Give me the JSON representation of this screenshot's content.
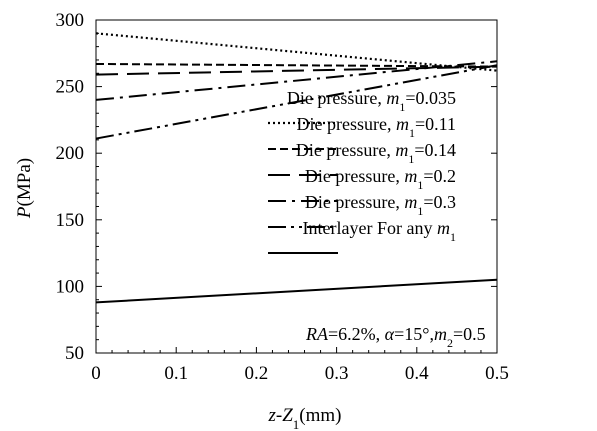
{
  "chart_data": {
    "type": "line",
    "xlabel": {
      "italic": "z-Z",
      "sub": "1",
      "rest": "(mm)"
    },
    "ylabel": {
      "italic": "P",
      "rest": "(MPa)"
    },
    "xlim": [
      0,
      0.5
    ],
    "ylim": [
      50,
      300
    ],
    "xticks": [
      {
        "v": 0,
        "label": "0"
      },
      {
        "v": 0.1,
        "label": "0.1"
      },
      {
        "v": 0.2,
        "label": "0.2"
      },
      {
        "v": 0.3,
        "label": "0.3"
      },
      {
        "v": 0.4,
        "label": "0.4"
      },
      {
        "v": 0.5,
        "label": "0.5"
      }
    ],
    "yticks": [
      {
        "v": 50,
        "label": "50"
      },
      {
        "v": 100,
        "label": "100"
      },
      {
        "v": 150,
        "label": "150"
      },
      {
        "v": 200,
        "label": "200"
      },
      {
        "v": 250,
        "label": "250"
      },
      {
        "v": 300,
        "label": "300"
      }
    ],
    "grid": false,
    "legend_position": "right",
    "series": [
      {
        "name_prefix": "Die pressure, ",
        "name_var": "m",
        "name_sub": "1",
        "name_suffix": "=0.035",
        "dash": "2,3",
        "x": [
          0,
          0.5
        ],
        "y": [
          290,
          262
        ]
      },
      {
        "name_prefix": "Die pressure, ",
        "name_var": "m",
        "name_sub": "1",
        "name_suffix": "=0.11",
        "dash": "8,4",
        "x": [
          0,
          0.5
        ],
        "y": [
          267,
          265
        ]
      },
      {
        "name_prefix": "Die pressure, ",
        "name_var": "m",
        "name_sub": "1",
        "name_suffix": "=0.14",
        "dash": "22,9",
        "x": [
          0,
          0.5
        ],
        "y": [
          259,
          265
        ]
      },
      {
        "name_prefix": "Die pressure, ",
        "name_var": "m",
        "name_sub": "1",
        "name_suffix": "=0.2",
        "dash": "18,6,3,6",
        "x": [
          0,
          0.5
        ],
        "y": [
          240,
          269
        ]
      },
      {
        "name_prefix": "Die pressure, ",
        "name_var": "m",
        "name_sub": "1",
        "name_suffix": "=0.3",
        "dash": "18,5,3,5,3,5",
        "x": [
          0,
          0.5
        ],
        "y": [
          211,
          266
        ]
      },
      {
        "name_prefix": "Interlayer For any ",
        "name_var": "m",
        "name_sub": "1",
        "name_suffix": "",
        "dash": "",
        "x": [
          0,
          0.5
        ],
        "y": [
          88,
          105
        ]
      }
    ],
    "annotation": {
      "ra_var": "RA",
      "ra_value": "=6.2%, ",
      "alpha": "α",
      "alpha_value": "=15°,",
      "m_var": "m",
      "m_sub": "2",
      "m_value": "=0.5"
    }
  }
}
